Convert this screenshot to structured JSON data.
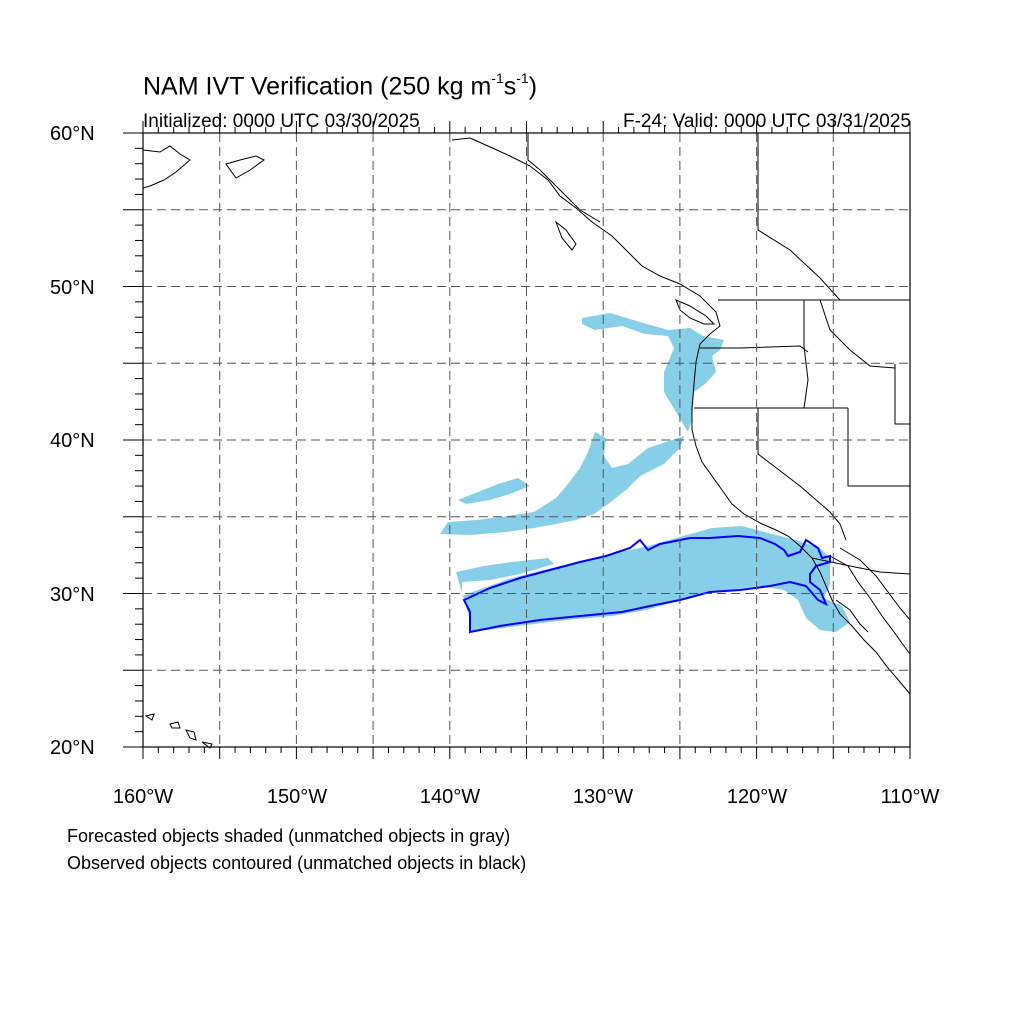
{
  "title": {
    "prefix": "NAM IVT Verification (250 kg m",
    "sup1": "-1",
    "mid": "s",
    "sup2": "-1",
    "suffix": ")"
  },
  "initialized": "Initialized: 0000 UTC 03/30/2025",
  "valid": "F-24: Valid: 0000 UTC 03/31/2025",
  "map": {
    "lon_range": [
      -160,
      -110
    ],
    "lat_range": [
      20,
      60
    ],
    "grid": true,
    "forecast_color": "#87CEE8",
    "observed_color": "#0000FF",
    "lat_labels": [
      "60°N",
      "50°N",
      "40°N",
      "30°N",
      "20°N"
    ],
    "lon_labels": [
      "160°W",
      "150°W",
      "140°W",
      "130°W",
      "120°W",
      "110°W"
    ]
  },
  "notes": {
    "line1": "Forecasted objects shaded (unmatched objects in gray)",
    "line2": "Observed objects contoured (unmatched objects in black)"
  }
}
